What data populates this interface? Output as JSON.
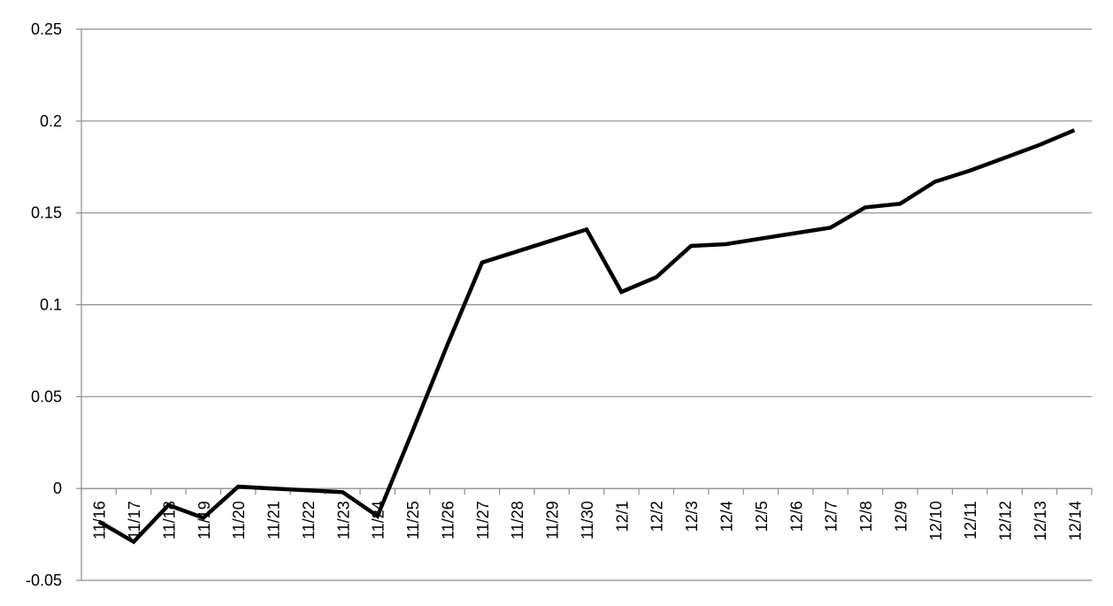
{
  "chart_data": {
    "type": "line",
    "title": "",
    "xlabel": "",
    "ylabel": "",
    "ylim": [
      -0.05,
      0.25
    ],
    "yticks": [
      "-0.05",
      "0",
      "0.05",
      "0.1",
      "0.15",
      "0.2",
      "0.25"
    ],
    "grid": "horizontal",
    "legend": "none",
    "line_color": "#000000",
    "categories": [
      "11/16",
      "11/17",
      "11/18",
      "11/19",
      "11/20",
      "11/21",
      "11/22",
      "11/23",
      "11/24",
      "11/25",
      "11/26",
      "11/27",
      "11/28",
      "11/29",
      "11/30",
      "12/1",
      "12/2",
      "12/3",
      "12/4",
      "12/5",
      "12/6",
      "12/7",
      "12/8",
      "12/9",
      "12/10",
      "12/11",
      "12/12",
      "12/13",
      "12/14"
    ],
    "series": [
      {
        "values": [
          -0.018,
          -0.029,
          -0.009,
          -0.016,
          0.001,
          0.0,
          -0.001,
          -0.002,
          -0.015,
          0.031,
          0.078,
          0.123,
          0.129,
          0.135,
          0.141,
          0.107,
          0.115,
          0.132,
          0.133,
          0.136,
          0.139,
          0.142,
          0.153,
          0.155,
          0.167,
          0.173,
          0.18,
          0.187,
          0.195
        ]
      }
    ]
  }
}
